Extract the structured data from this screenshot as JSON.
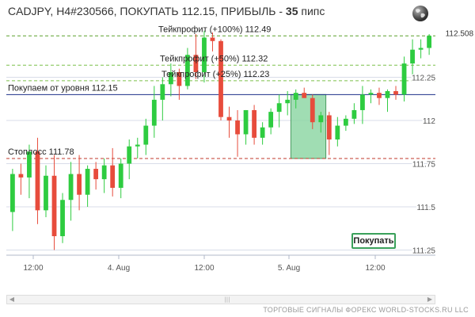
{
  "header": {
    "title_prefix": "CADJPY, H4#230566, ПОКУПАТЬ 112.15, ПРИБЫЛЬ - ",
    "profit_value": "35",
    "title_suffix": " пипс"
  },
  "footer": {
    "text": "ТОРГОВЫЕ СИГНАЛЫ ФОРЕКС WORLD-STOCKS.RU LLC"
  },
  "buttons": {
    "buy_label": "Покупать"
  },
  "icons": {
    "globe": "globe-icon"
  },
  "chart_data": {
    "type": "candlestick",
    "symbol": "CADJPY",
    "timeframe": "H4",
    "ylim": [
      111.22,
      112.56
    ],
    "y_ticks": [
      {
        "value": 112.25,
        "label": "112.25"
      },
      {
        "value": 112.0,
        "label": "112"
      },
      {
        "value": 111.75,
        "label": "111.75"
      },
      {
        "value": 111.5,
        "label": "111.5"
      },
      {
        "value": 111.25,
        "label": "111.25"
      }
    ],
    "x_ticks": [
      "12:00",
      "4. Aug",
      "12:00",
      "5. Aug",
      "12:00"
    ],
    "last_price": "112.508",
    "levels": [
      {
        "name": "take-profit-100",
        "label": "Тейкпрофит (+100%) 112.49",
        "value": 112.49,
        "color": "#5aa02c",
        "dash": true
      },
      {
        "name": "take-profit-50",
        "label": "Тейкпрофит (+50%) 112.32",
        "value": 112.32,
        "color": "#7cc04a",
        "dash": true
      },
      {
        "name": "take-profit-25",
        "label": "Тейкпрофит (+25%) 112.23",
        "value": 112.23,
        "color": "#7cc04a",
        "dash": true
      },
      {
        "name": "entry",
        "label": "Покупаем от уровня 112.15",
        "value": 112.15,
        "color": "#1c2f8a",
        "dash": false
      },
      {
        "name": "stop-loss",
        "label": "Стоплосс 111.78",
        "value": 111.78,
        "color": "#c0392b",
        "dash": true
      }
    ],
    "entry_zone": {
      "from_index": 34,
      "to_index": 37,
      "low": 111.78,
      "high": 112.15,
      "color": "#88d4a0"
    },
    "colors": {
      "up": "#2ecc40",
      "down": "#e74c3c",
      "grid": "#d8dde8"
    },
    "candles": [
      {
        "o": 111.47,
        "h": 111.72,
        "l": 111.36,
        "c": 111.69
      },
      {
        "o": 111.69,
        "h": 111.75,
        "l": 111.57,
        "c": 111.67
      },
      {
        "o": 111.67,
        "h": 111.86,
        "l": 111.55,
        "c": 111.82
      },
      {
        "o": 111.82,
        "h": 111.9,
        "l": 111.4,
        "c": 111.48
      },
      {
        "o": 111.48,
        "h": 111.74,
        "l": 111.44,
        "c": 111.68
      },
      {
        "o": 111.68,
        "h": 111.8,
        "l": 111.25,
        "c": 111.33
      },
      {
        "o": 111.33,
        "h": 111.58,
        "l": 111.29,
        "c": 111.54
      },
      {
        "o": 111.54,
        "h": 111.76,
        "l": 111.42,
        "c": 111.69
      },
      {
        "o": 111.69,
        "h": 111.8,
        "l": 111.48,
        "c": 111.57
      },
      {
        "o": 111.57,
        "h": 111.74,
        "l": 111.5,
        "c": 111.72
      },
      {
        "o": 111.72,
        "h": 111.76,
        "l": 111.6,
        "c": 111.66
      },
      {
        "o": 111.66,
        "h": 111.78,
        "l": 111.58,
        "c": 111.74
      },
      {
        "o": 111.74,
        "h": 111.84,
        "l": 111.56,
        "c": 111.61
      },
      {
        "o": 111.61,
        "h": 111.78,
        "l": 111.55,
        "c": 111.75
      },
      {
        "o": 111.75,
        "h": 111.89,
        "l": 111.66,
        "c": 111.85
      },
      {
        "o": 111.85,
        "h": 111.9,
        "l": 111.78,
        "c": 111.86
      },
      {
        "o": 111.86,
        "h": 112.01,
        "l": 111.8,
        "c": 111.97
      },
      {
        "o": 111.97,
        "h": 112.2,
        "l": 111.9,
        "c": 112.12
      },
      {
        "o": 112.12,
        "h": 112.25,
        "l": 112.0,
        "c": 112.21
      },
      {
        "o": 112.21,
        "h": 112.33,
        "l": 112.14,
        "c": 112.28
      },
      {
        "o": 112.28,
        "h": 112.3,
        "l": 112.12,
        "c": 112.2
      },
      {
        "o": 112.2,
        "h": 112.42,
        "l": 112.18,
        "c": 112.38
      },
      {
        "o": 112.38,
        "h": 112.5,
        "l": 112.24,
        "c": 112.28
      },
      {
        "o": 112.28,
        "h": 112.52,
        "l": 112.22,
        "c": 112.48
      },
      {
        "o": 112.48,
        "h": 112.51,
        "l": 112.4,
        "c": 112.46
      },
      {
        "o": 112.46,
        "h": 112.47,
        "l": 112.0,
        "c": 112.02
      },
      {
        "o": 112.02,
        "h": 112.08,
        "l": 111.9,
        "c": 112.0
      },
      {
        "o": 112.0,
        "h": 112.06,
        "l": 111.79,
        "c": 111.92
      },
      {
        "o": 111.92,
        "h": 112.06,
        "l": 111.86,
        "c": 112.06
      },
      {
        "o": 112.06,
        "h": 112.09,
        "l": 111.86,
        "c": 111.9
      },
      {
        "o": 111.9,
        "h": 111.99,
        "l": 111.86,
        "c": 111.96
      },
      {
        "o": 111.96,
        "h": 112.07,
        "l": 111.92,
        "c": 112.05
      },
      {
        "o": 112.05,
        "h": 112.15,
        "l": 111.96,
        "c": 112.1
      },
      {
        "o": 112.1,
        "h": 112.17,
        "l": 112.03,
        "c": 112.12
      },
      {
        "o": 112.12,
        "h": 112.18,
        "l": 112.07,
        "c": 112.16
      },
      {
        "o": 112.16,
        "h": 112.19,
        "l": 112.13,
        "c": 112.13
      },
      {
        "o": 112.13,
        "h": 112.15,
        "l": 111.95,
        "c": 111.99
      },
      {
        "o": 111.99,
        "h": 112.05,
        "l": 111.93,
        "c": 112.03
      },
      {
        "o": 112.03,
        "h": 112.05,
        "l": 111.8,
        "c": 111.89
      },
      {
        "o": 111.89,
        "h": 112.02,
        "l": 111.85,
        "c": 111.97
      },
      {
        "o": 111.97,
        "h": 112.03,
        "l": 111.94,
        "c": 112.01
      },
      {
        "o": 112.01,
        "h": 112.1,
        "l": 111.98,
        "c": 112.06
      },
      {
        "o": 112.06,
        "h": 112.2,
        "l": 111.98,
        "c": 112.15
      },
      {
        "o": 112.15,
        "h": 112.18,
        "l": 112.1,
        "c": 112.16
      },
      {
        "o": 112.16,
        "h": 112.19,
        "l": 112.09,
        "c": 112.13
      },
      {
        "o": 112.13,
        "h": 112.18,
        "l": 112.05,
        "c": 112.17
      },
      {
        "o": 112.17,
        "h": 112.2,
        "l": 112.12,
        "c": 112.15
      },
      {
        "o": 112.15,
        "h": 112.37,
        "l": 112.11,
        "c": 112.33
      },
      {
        "o": 112.33,
        "h": 112.47,
        "l": 112.26,
        "c": 112.41
      },
      {
        "o": 112.41,
        "h": 112.47,
        "l": 112.36,
        "c": 112.42
      },
      {
        "o": 112.42,
        "h": 112.5,
        "l": 112.38,
        "c": 112.49
      }
    ]
  }
}
